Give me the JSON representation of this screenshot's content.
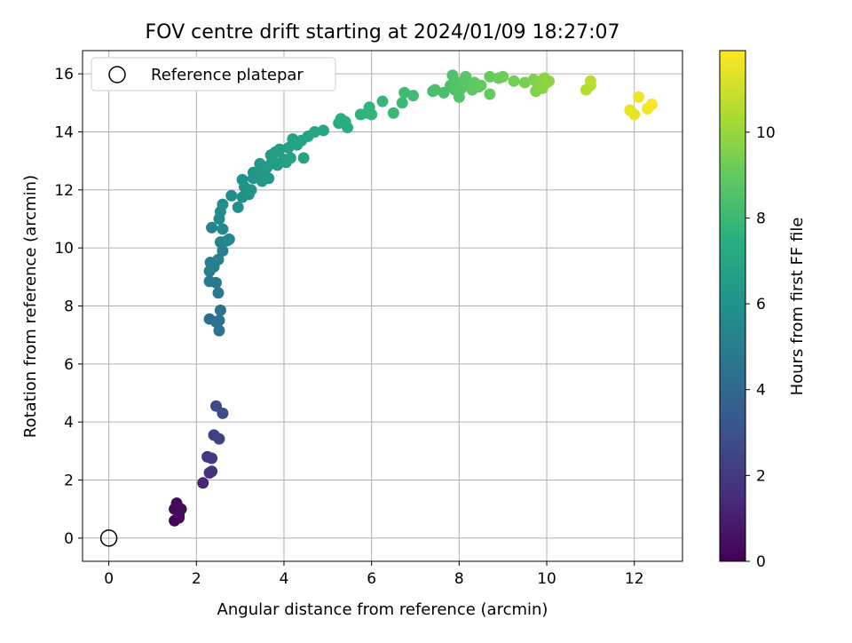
{
  "chart_data": {
    "type": "scatter",
    "title": "FOV centre drift starting at 2024/01/09 18:27:07",
    "xlabel": "Angular distance from reference (arcmin)",
    "ylabel": "Rotation from reference (arcmin)",
    "xlim": [
      -0.6,
      13.1
    ],
    "ylim": [
      -0.8,
      16.8
    ],
    "xticks": [
      0,
      2,
      4,
      6,
      8,
      10,
      12
    ],
    "yticks": [
      0,
      2,
      4,
      6,
      8,
      10,
      12,
      14,
      16
    ],
    "grid": true,
    "legend": {
      "placement": "top-left",
      "entries": [
        "Reference platepar"
      ]
    },
    "reference_point": {
      "x": 0,
      "y": 0,
      "label": "Reference platepar"
    },
    "colorbar": {
      "label": "Hours from first FF file",
      "range": [
        0,
        11.9
      ],
      "ticks": [
        0,
        2,
        4,
        6,
        8,
        10
      ],
      "colormap": "viridis"
    },
    "points": [
      [
        1.5,
        0.6,
        0.1
      ],
      [
        1.6,
        0.7,
        0.15
      ],
      [
        1.5,
        1.0,
        0.2
      ],
      [
        1.55,
        1.2,
        0.25
      ],
      [
        1.65,
        1.0,
        0.3
      ],
      [
        1.6,
        0.8,
        0.35
      ],
      [
        2.15,
        1.9,
        1.3
      ],
      [
        2.3,
        2.25,
        1.6
      ],
      [
        2.35,
        2.3,
        1.7
      ],
      [
        2.25,
        2.8,
        1.9
      ],
      [
        2.35,
        2.75,
        2.0
      ],
      [
        2.4,
        3.55,
        2.3
      ],
      [
        2.52,
        3.42,
        2.4
      ],
      [
        2.45,
        4.55,
        2.7
      ],
      [
        2.6,
        4.3,
        2.8
      ],
      [
        2.3,
        7.55,
        4.3
      ],
      [
        2.45,
        7.45,
        4.4
      ],
      [
        2.52,
        7.5,
        4.45
      ],
      [
        2.55,
        7.85,
        4.5
      ],
      [
        2.52,
        7.15,
        4.55
      ],
      [
        2.5,
        8.45,
        4.7
      ],
      [
        2.3,
        8.85,
        4.8
      ],
      [
        2.45,
        8.8,
        4.85
      ],
      [
        2.3,
        9.2,
        5.0
      ],
      [
        2.32,
        9.5,
        5.05
      ],
      [
        2.4,
        9.35,
        5.1
      ],
      [
        2.5,
        9.6,
        5.15
      ],
      [
        2.6,
        9.9,
        5.2
      ],
      [
        2.35,
        10.7,
        5.3
      ],
      [
        2.55,
        10.2,
        5.35
      ],
      [
        2.6,
        10.65,
        5.4
      ],
      [
        2.7,
        10.25,
        5.45
      ],
      [
        2.75,
        10.3,
        5.5
      ],
      [
        2.52,
        11.0,
        5.6
      ],
      [
        2.55,
        11.25,
        5.65
      ],
      [
        2.6,
        11.5,
        5.7
      ],
      [
        2.8,
        11.8,
        5.8
      ],
      [
        2.95,
        11.4,
        5.85
      ],
      [
        3.05,
        11.75,
        5.9
      ],
      [
        3.1,
        12.1,
        5.95
      ],
      [
        3.05,
        12.35,
        6.0
      ],
      [
        3.2,
        11.85,
        6.05
      ],
      [
        3.25,
        12.0,
        6.1
      ],
      [
        3.3,
        12.4,
        6.12
      ],
      [
        3.3,
        12.6,
        6.15
      ],
      [
        3.4,
        12.55,
        6.2
      ],
      [
        3.45,
        12.9,
        6.25
      ],
      [
        3.5,
        12.3,
        6.28
      ],
      [
        3.55,
        12.5,
        6.3
      ],
      [
        3.6,
        12.75,
        6.35
      ],
      [
        3.65,
        12.4,
        6.38
      ],
      [
        3.7,
        12.9,
        6.4
      ],
      [
        3.7,
        13.2,
        6.45
      ],
      [
        3.75,
        13.0,
        6.5
      ],
      [
        3.8,
        13.3,
        6.55
      ],
      [
        3.85,
        12.85,
        6.58
      ],
      [
        3.9,
        13.4,
        6.6
      ],
      [
        4.0,
        13.05,
        6.65
      ],
      [
        4.05,
        12.95,
        6.7
      ],
      [
        4.1,
        13.45,
        6.72
      ],
      [
        4.15,
        13.1,
        6.75
      ],
      [
        4.2,
        13.75,
        6.8
      ],
      [
        4.3,
        13.55,
        6.85
      ],
      [
        4.4,
        13.7,
        6.9
      ],
      [
        4.45,
        13.1,
        6.95
      ],
      [
        4.55,
        13.85,
        7.0
      ],
      [
        4.7,
        14.0,
        7.05
      ],
      [
        4.9,
        14.05,
        7.1
      ],
      [
        5.25,
        14.3,
        7.3
      ],
      [
        5.3,
        14.45,
        7.35
      ],
      [
        5.4,
        14.35,
        7.4
      ],
      [
        5.45,
        14.15,
        7.45
      ],
      [
        5.75,
        14.6,
        7.6
      ],
      [
        5.9,
        14.65,
        7.65
      ],
      [
        5.95,
        14.85,
        7.7
      ],
      [
        6.0,
        14.6,
        7.75
      ],
      [
        6.25,
        15.05,
        7.9
      ],
      [
        6.5,
        14.65,
        8.0
      ],
      [
        6.7,
        15.0,
        8.05
      ],
      [
        6.75,
        15.35,
        8.1
      ],
      [
        6.95,
        15.25,
        8.15
      ],
      [
        7.4,
        15.4,
        8.3
      ],
      [
        7.45,
        15.45,
        8.35
      ],
      [
        7.65,
        15.35,
        8.4
      ],
      [
        7.8,
        15.6,
        8.45
      ],
      [
        7.85,
        15.95,
        8.5
      ],
      [
        7.9,
        15.45,
        8.55
      ],
      [
        7.95,
        15.7,
        8.6
      ],
      [
        8.0,
        15.2,
        8.62
      ],
      [
        8.05,
        15.5,
        8.65
      ],
      [
        8.1,
        15.75,
        8.7
      ],
      [
        8.15,
        15.9,
        8.75
      ],
      [
        8.2,
        15.6,
        8.8
      ],
      [
        8.3,
        15.45,
        8.85
      ],
      [
        8.35,
        15.7,
        8.9
      ],
      [
        8.45,
        15.55,
        8.95
      ],
      [
        8.5,
        15.6,
        9.0
      ],
      [
        8.7,
        15.3,
        9.05
      ],
      [
        8.7,
        15.9,
        9.1
      ],
      [
        8.9,
        15.85,
        9.15
      ],
      [
        9.0,
        15.9,
        9.2
      ],
      [
        9.25,
        15.75,
        9.3
      ],
      [
        9.5,
        15.7,
        9.4
      ],
      [
        9.7,
        15.8,
        9.5
      ],
      [
        9.75,
        15.4,
        9.55
      ],
      [
        9.8,
        15.6,
        9.6
      ],
      [
        9.85,
        15.75,
        9.65
      ],
      [
        9.9,
        15.5,
        9.7
      ],
      [
        9.95,
        15.85,
        9.75
      ],
      [
        10.0,
        15.7,
        9.8
      ],
      [
        10.05,
        15.75,
        9.85
      ],
      [
        10.9,
        15.45,
        10.5
      ],
      [
        11.0,
        15.6,
        10.6
      ],
      [
        11.0,
        15.75,
        10.65
      ],
      [
        11.9,
        14.75,
        11.5
      ],
      [
        12.0,
        14.6,
        11.55
      ],
      [
        12.1,
        15.2,
        11.6
      ],
      [
        12.3,
        14.8,
        11.7
      ],
      [
        12.4,
        14.95,
        11.8
      ]
    ]
  }
}
